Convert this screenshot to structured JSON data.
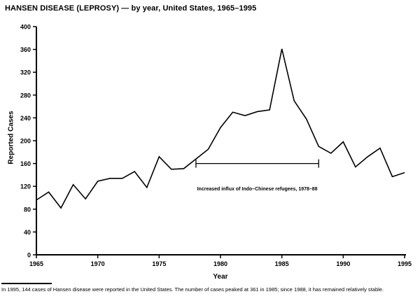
{
  "page": {
    "title": "HANSEN DISEASE (LEPROSY) — by year, United States, 1965–1995",
    "footnote": "In 1995, 144 cases of Hansen disease were reported in the United States. The number of cases peaked at 361 in 1985; since 1988, it has remained relatively stable."
  },
  "chart_data": {
    "type": "line",
    "title": "HANSEN DISEASE (LEPROSY) — by year, United States, 1965–1995",
    "xlabel": "Year",
    "ylabel": "Reported Cases",
    "xlim": [
      1965,
      1995
    ],
    "ylim": [
      0,
      400
    ],
    "xticks": [
      1965,
      1970,
      1975,
      1980,
      1985,
      1990,
      1995
    ],
    "yticks": [
      0,
      40,
      80,
      120,
      160,
      200,
      240,
      280,
      320,
      360,
      400
    ],
    "grid": false,
    "line_color": "#000000",
    "x": [
      1965,
      1966,
      1967,
      1968,
      1969,
      1970,
      1971,
      1972,
      1973,
      1974,
      1975,
      1976,
      1977,
      1978,
      1979,
      1980,
      1981,
      1982,
      1983,
      1984,
      1985,
      1986,
      1987,
      1988,
      1989,
      1990,
      1991,
      1992,
      1993,
      1994,
      1995
    ],
    "values": [
      96,
      110,
      82,
      123,
      98,
      129,
      134,
      134,
      146,
      118,
      172,
      150,
      151,
      168,
      185,
      223,
      250,
      244,
      251,
      254,
      361,
      270,
      238,
      190,
      178,
      198,
      154,
      172,
      187,
      137,
      144
    ],
    "annotation": {
      "label": "Increased influx of Indo–Chinese refugees, 1978–88",
      "x_start": 1978,
      "x_end": 1988,
      "y": 160,
      "label_y": 113
    }
  }
}
